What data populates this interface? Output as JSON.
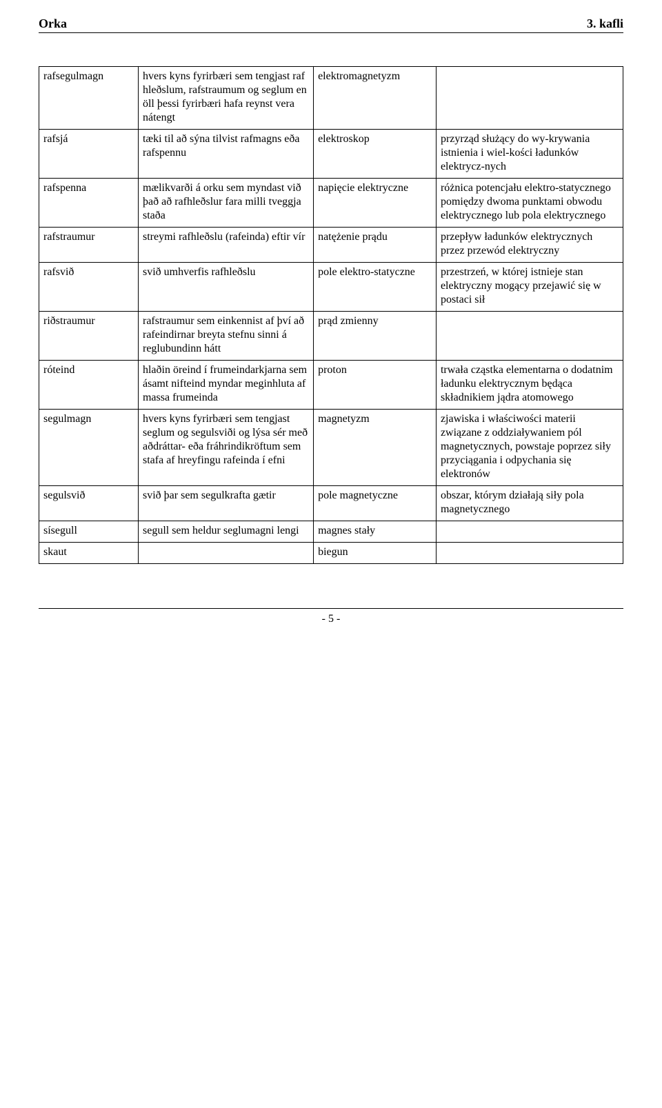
{
  "header": {
    "left": "Orka",
    "right": "3. kafli"
  },
  "table": {
    "rows": [
      {
        "c1": "rafsegulmagn",
        "c2": "hvers kyns fyrirbæri sem tengjast raf hleðslum, rafstraumum og seglum en öll þessi fyrirbæri hafa reynst vera nátengt",
        "c3": "elektromagnetyzm",
        "c4": ""
      },
      {
        "c1": "rafsjá",
        "c2": "tæki til að sýna tilvist rafmagns eða rafspennu",
        "c3": "elektroskop",
        "c4": "przyrząd służący do wy-krywania istnienia i wiel-kości ładunków elektrycz-nych"
      },
      {
        "c1": "rafspenna",
        "c2": "mælikvarði á orku sem myndast við það að rafhleðslur fara milli tveggja staða",
        "c3": "napięcie elektryczne",
        "c4": "różnica potencjału elektro-statycznego pomiędzy dwoma punktami obwodu elektrycznego lub pola elektrycznego"
      },
      {
        "c1": "rafstraumur",
        "c2": "streymi rafhleðslu (rafeinda) eftir vír",
        "c3": "natężenie prądu",
        "c4": "przepływ ładunków elektrycznych przez przewód elektryczny"
      },
      {
        "c1": "rafsvið",
        "c2": "svið umhverfis rafhleðslu",
        "c3": "pole elektro-statyczne",
        "c4": "przestrzeń, w której istnieje stan elektryczny mogący przejawić się w postaci sił"
      },
      {
        "c1": "riðstraumur",
        "c2": "rafstraumur sem einkennist af því að rafeindirnar breyta stefnu sinni á reglubundinn hátt",
        "c3": "prąd zmienny",
        "c4": ""
      },
      {
        "c1": "róteind",
        "c2": "hlaðin öreind í frumeindarkjarna sem ásamt nifteind myndar meginhluta af massa frumeinda",
        "c3": "proton",
        "c4": "trwała cząstka elementarna o dodatnim ładunku elektrycznym będąca składnikiem jądra atomowego"
      },
      {
        "c1": "segulmagn",
        "c2": "hvers kyns fyrirbæri sem tengjast seglum og segulsviði og lýsa sér með aðdráttar- eða fráhrindikröftum sem stafa af hreyfingu rafeinda í efni",
        "c3": "magnetyzm",
        "c4": "zjawiska i właściwości materii związane z oddziaływaniem pól magnetycznych, powstaje poprzez  siły przyciągania i odpychania się elektronów"
      },
      {
        "c1": "segulsvið",
        "c2": "svið þar sem segulkrafta gætir",
        "c3": "pole magnetyczne",
        "c4": "obszar, którym  działają siły pola  magnetycznego"
      },
      {
        "c1": "sísegull",
        "c2": "segull sem heldur seglumagni lengi",
        "c3": "magnes stały",
        "c4": ""
      },
      {
        "c1": "skaut",
        "c2": "",
        "c3": "biegun",
        "c4": ""
      }
    ]
  },
  "footer": {
    "page_number": "- 5 -"
  }
}
